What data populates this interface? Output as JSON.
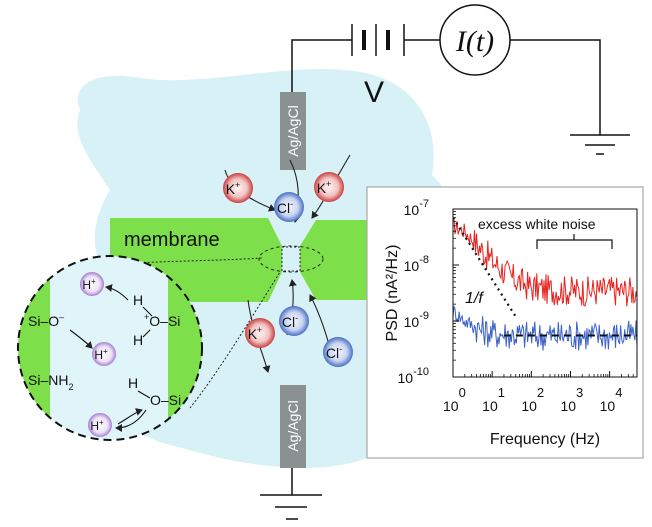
{
  "circuit": {
    "voltage_label": "V",
    "current_label": "I(t)"
  },
  "electrodes": {
    "top_label": "Ag/AgCl",
    "bottom_label": "Ag/AgCl"
  },
  "membrane": {
    "label": "membrane"
  },
  "ions": [
    {
      "sym": "K",
      "sup": "+",
      "type": "cation"
    },
    {
      "sym": "Cl",
      "sup": "-",
      "type": "anion"
    },
    {
      "sym": "K",
      "sup": "+",
      "type": "cation"
    },
    {
      "sym": "K",
      "sup": "+",
      "type": "cation"
    },
    {
      "sym": "Cl",
      "sup": "-",
      "type": "anion"
    },
    {
      "sym": "Cl",
      "sup": "-",
      "type": "anion"
    }
  ],
  "surface_chemistry": {
    "protons": [
      {
        "sym": "H",
        "sup": "+"
      },
      {
        "sym": "H",
        "sup": "+"
      },
      {
        "sym": "H",
        "sup": "+"
      }
    ],
    "labels": {
      "si_o_minus": {
        "main": "Si–O",
        "sup": "–"
      },
      "si_nh2": {
        "main": "Si–NH",
        "sub": "2"
      },
      "h_top": "H",
      "plus_o_si": {
        "pre": "+",
        "main": "O–Si"
      },
      "h_mid": "H",
      "h_low": "H",
      "o_si_low": "O–Si"
    }
  },
  "chart_data": {
    "type": "line",
    "title": "",
    "xlabel": "Frequency (Hz)",
    "ylabel": "PSD (nA²/Hz)",
    "xscale": "log",
    "yscale": "log",
    "xlim": [
      1,
      50000
    ],
    "ylim": [
      1e-10,
      1e-07
    ],
    "x_ticks": [
      {
        "base": "10",
        "exp": "0"
      },
      {
        "base": "10",
        "exp": "1"
      },
      {
        "base": "10",
        "exp": "2"
      },
      {
        "base": "10",
        "exp": "3"
      },
      {
        "base": "10",
        "exp": "4"
      }
    ],
    "y_ticks": [
      {
        "base": "10",
        "exp": "-7"
      },
      {
        "base": "10",
        "exp": "-8"
      },
      {
        "base": "10",
        "exp": "-9"
      },
      {
        "base": "10",
        "exp": "-10"
      }
    ],
    "series": [
      {
        "color": "#e8231e",
        "x": [
          1,
          2,
          5,
          10,
          30,
          100,
          300,
          1000,
          3000,
          10000,
          30000,
          50000
        ],
        "values": [
          5e-08,
          4e-08,
          2e-08,
          1.2e-08,
          6e-09,
          4e-09,
          3.6e-09,
          3.5e-09,
          3.4e-09,
          3.5e-09,
          3.4e-09,
          3.5e-09
        ]
      },
      {
        "color": "#3b62c8",
        "x": [
          1,
          2,
          5,
          10,
          30,
          100,
          300,
          1000,
          3000,
          10000,
          30000,
          50000
        ],
        "values": [
          1.5e-09,
          1e-09,
          7e-10,
          6e-10,
          5.8e-10,
          5.5e-10,
          5.5e-10,
          5.6e-10,
          5.5e-10,
          5.5e-10,
          5.6e-10,
          5.5e-10
        ]
      }
    ],
    "reference_lines": [
      {
        "style": "dotted",
        "x": [
          1,
          40
        ],
        "values": [
          7e-08,
          1.2e-09
        ]
      },
      {
        "style": "dashed",
        "x": [
          20,
          50000
        ],
        "values": [
          5.5e-10,
          5.5e-10
        ]
      }
    ],
    "annotations": {
      "excess": "excess white noise",
      "one_over_f": "1/f"
    },
    "colors": {
      "red": "#e8231e",
      "blue": "#3b62c8"
    }
  }
}
